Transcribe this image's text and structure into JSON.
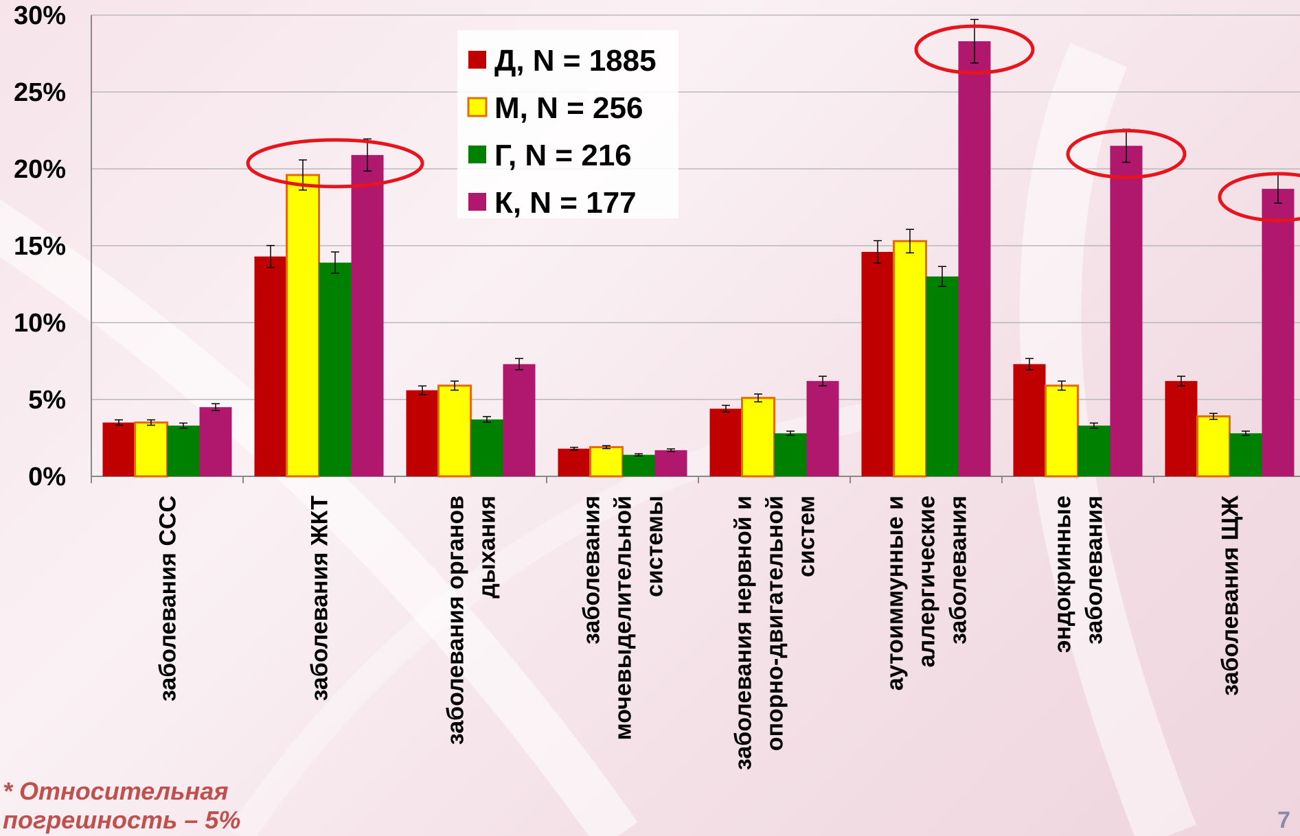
{
  "footnote": "* Относительная погрешность – 5%",
  "slide_number": "7",
  "colors": {
    "highlight_ellipse": "#e8141c",
    "gridline": "#b8b8b8",
    "axis": "#888888"
  },
  "chart_data": {
    "type": "bar",
    "title": "",
    "xlabel": "",
    "ylabel": "",
    "ylim": [
      0,
      30
    ],
    "y_ticks": [
      "0%",
      "5%",
      "10%",
      "15%",
      "20%",
      "25%",
      "30%"
    ],
    "grid": true,
    "legend_position": "top-center",
    "error_bars": "relative 5%",
    "categories": [
      [
        "заболевания ССС"
      ],
      [
        "заболевания ЖКТ"
      ],
      [
        "заболевания органов",
        "дыхания"
      ],
      [
        "заболевания",
        "мочевыделительной",
        "системы"
      ],
      [
        "заболевания нервной и",
        "опорно-двигательной",
        "систем"
      ],
      [
        "аутоиммунные и",
        "аллергические",
        "заболевания"
      ],
      [
        "эндокринные",
        "заболевания"
      ],
      [
        "заболевания ЩЖ"
      ]
    ],
    "series": [
      {
        "name": "Д, N = 1885",
        "color": "#c00000",
        "values": [
          3.5,
          14.3,
          5.6,
          1.8,
          4.4,
          14.6,
          7.3,
          6.2
        ]
      },
      {
        "name": "М, N = 256",
        "color": "#ffff00",
        "values": [
          3.5,
          19.6,
          5.9,
          1.9,
          5.1,
          15.3,
          5.9,
          3.9
        ]
      },
      {
        "name": "Г, N = 216",
        "color": "#008000",
        "values": [
          3.3,
          13.9,
          3.7,
          1.4,
          2.8,
          13.0,
          3.3,
          2.8
        ]
      },
      {
        "name": "К, N = 177",
        "color": "#b0186e",
        "values": [
          4.5,
          20.9,
          7.3,
          1.7,
          6.2,
          28.3,
          21.5,
          18.7
        ]
      }
    ],
    "highlighted": [
      {
        "category": 1,
        "series": [
          1,
          3
        ]
      },
      {
        "category": 5,
        "series": [
          3
        ]
      },
      {
        "category": 6,
        "series": [
          3
        ]
      },
      {
        "category": 7,
        "series": [
          3
        ]
      }
    ]
  }
}
